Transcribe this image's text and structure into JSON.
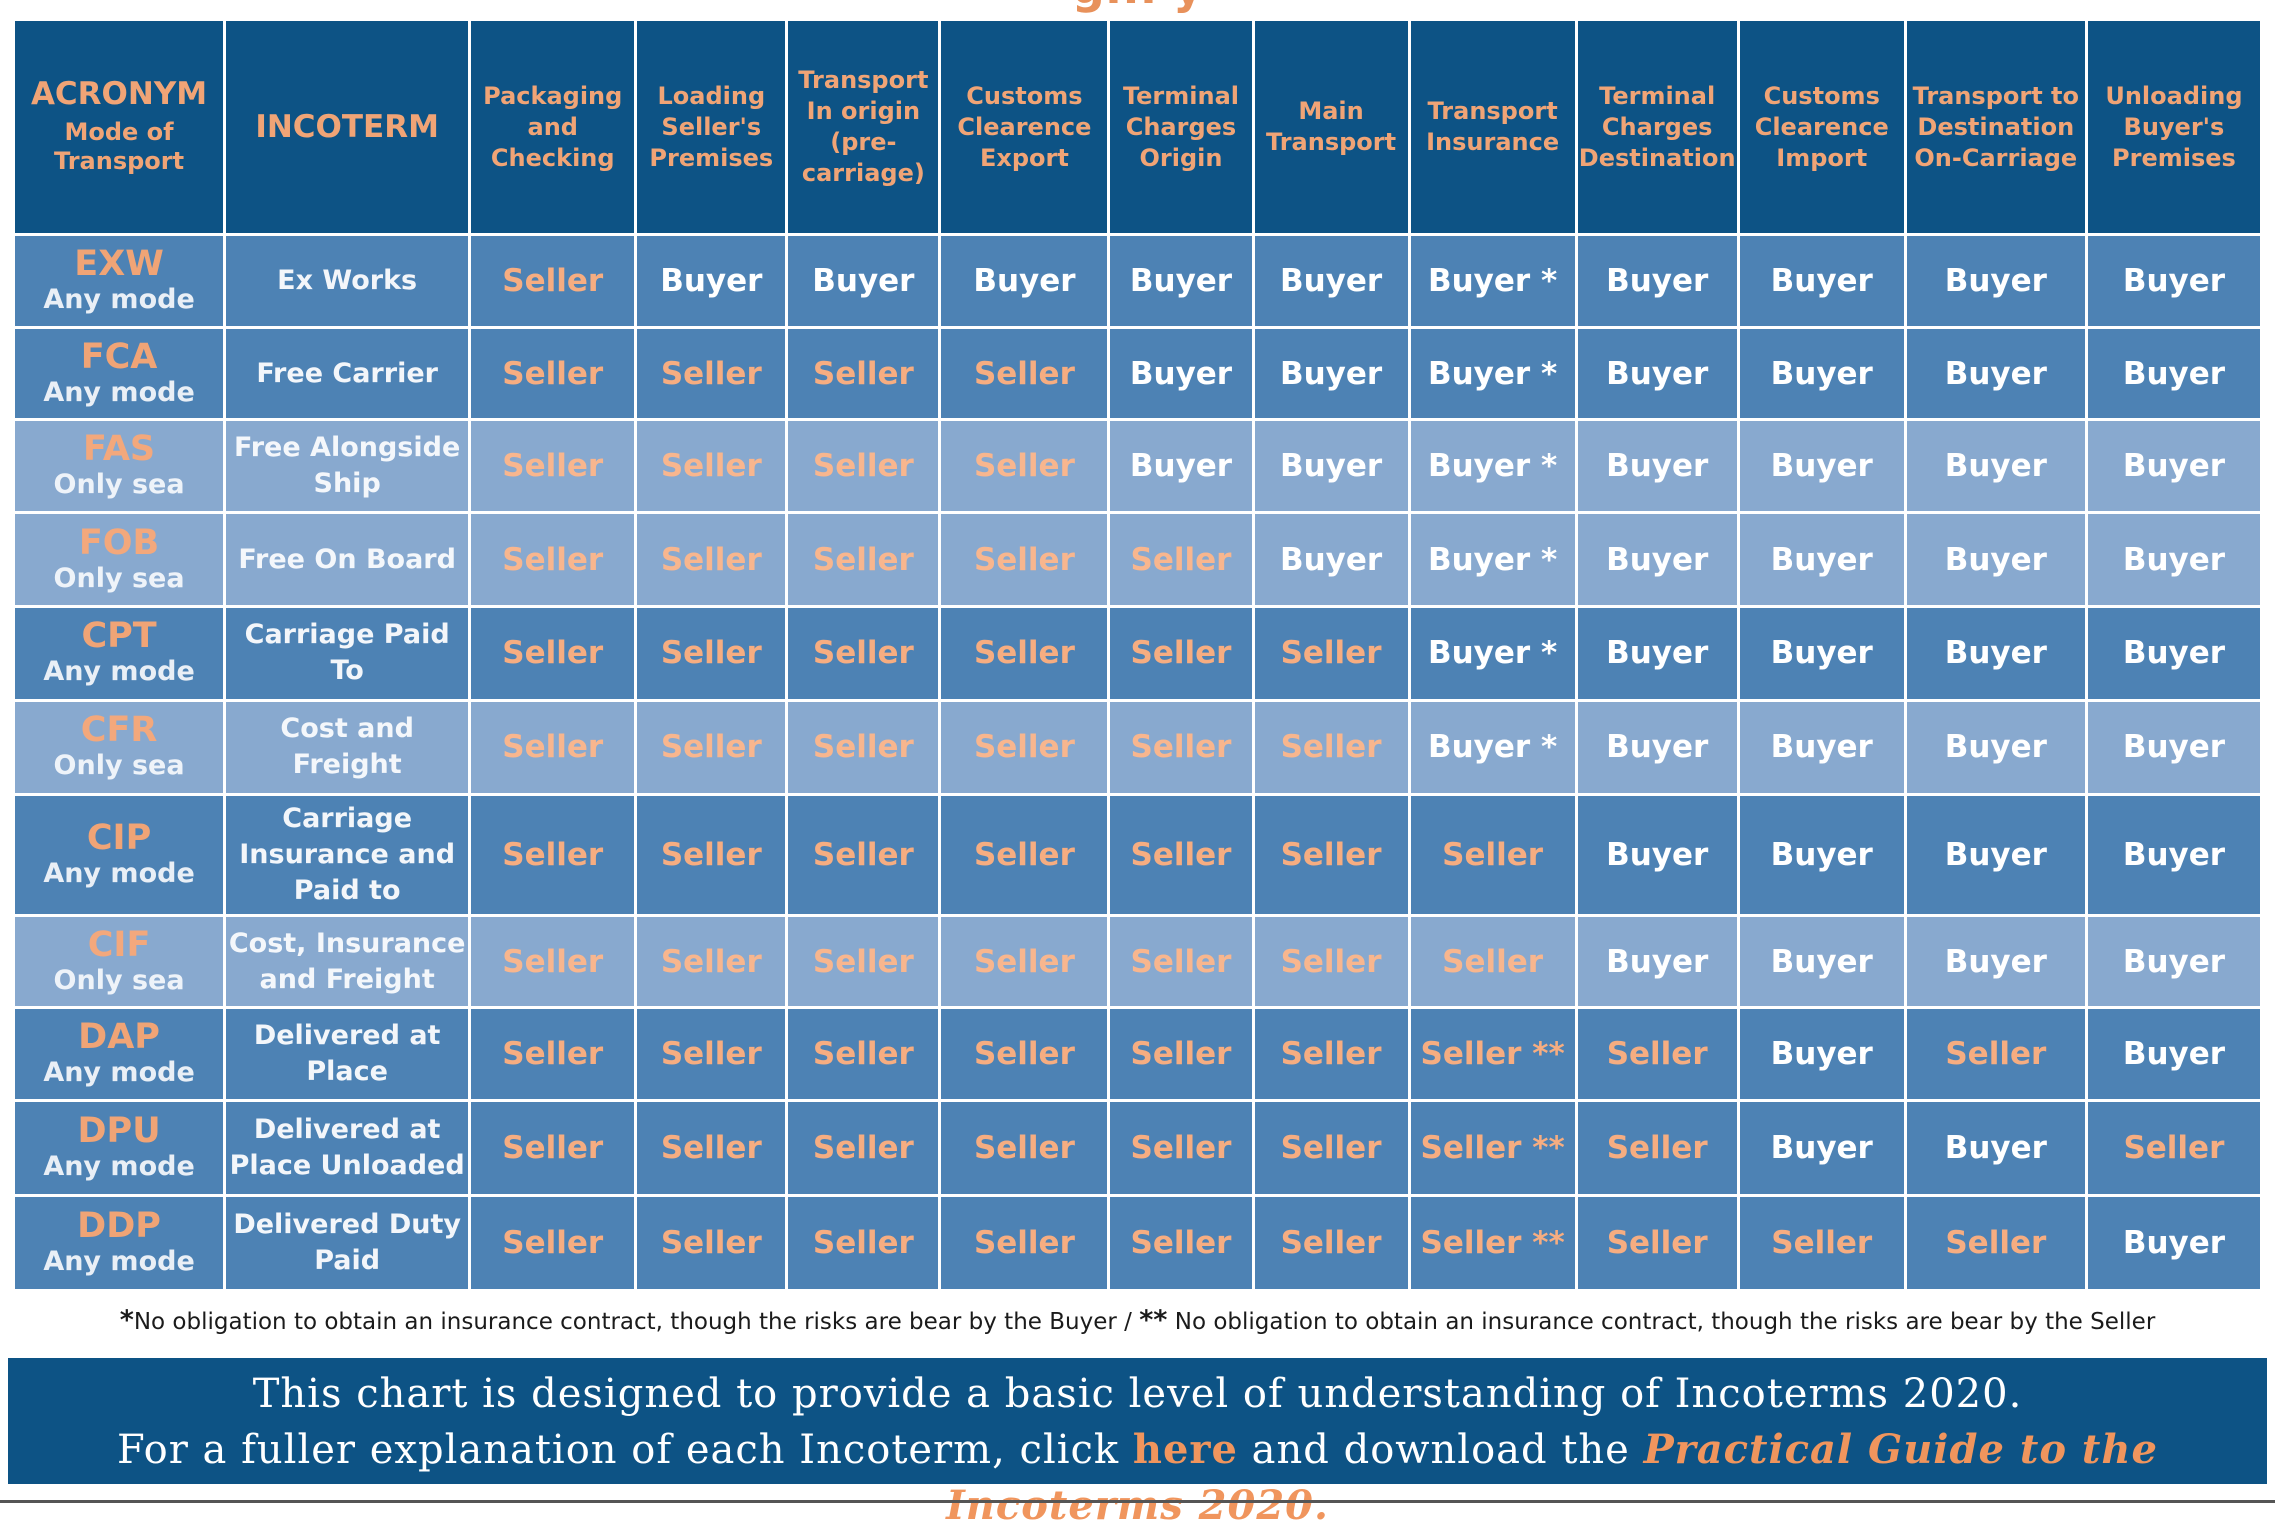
{
  "page": {
    "title_fragment": "g... y"
  },
  "headers": {
    "acronym": "ACRONYM",
    "mode_of_transport": "Mode of Transport",
    "incoterm": "INCOTERM",
    "columns": [
      "Packaging and Checking",
      "Loading Seller's Premises",
      "Transport In origin (pre-carriage)",
      "Customs Clearence Export",
      "Terminal Charges Origin",
      "Main Transport",
      "Transport Insurance",
      "Terminal Charges Destination",
      "Customs Clearence Import",
      "Transport to Destination On-Carriage",
      "Unloading Buyer's Premises"
    ]
  },
  "rows": [
    {
      "code": "EXW",
      "mode": "Any mode",
      "term": "Ex Works",
      "shade": "dk",
      "values": [
        "Seller",
        "Buyer",
        "Buyer",
        "Buyer",
        "Buyer",
        "Buyer",
        "Buyer *",
        "Buyer",
        "Buyer",
        "Buyer",
        "Buyer"
      ]
    },
    {
      "code": "FCA",
      "mode": "Any mode",
      "term": "Free Carrier",
      "shade": "dk",
      "values": [
        "Seller",
        "Seller",
        "Seller",
        "Seller",
        "Buyer",
        "Buyer",
        "Buyer *",
        "Buyer",
        "Buyer",
        "Buyer",
        "Buyer"
      ]
    },
    {
      "code": "FAS",
      "mode": "Only sea",
      "term": "Free Alongside Ship",
      "shade": "lt",
      "values": [
        "Seller",
        "Seller",
        "Seller",
        "Seller",
        "Buyer",
        "Buyer",
        "Buyer *",
        "Buyer",
        "Buyer",
        "Buyer",
        "Buyer"
      ]
    },
    {
      "code": "FOB",
      "mode": "Only sea",
      "term": "Free On Board",
      "shade": "lt",
      "values": [
        "Seller",
        "Seller",
        "Seller",
        "Seller",
        "Seller",
        "Buyer",
        "Buyer *",
        "Buyer",
        "Buyer",
        "Buyer",
        "Buyer"
      ]
    },
    {
      "code": "CPT",
      "mode": "Any mode",
      "term": "Carriage Paid To",
      "shade": "dk",
      "values": [
        "Seller",
        "Seller",
        "Seller",
        "Seller",
        "Seller",
        "Seller",
        "Buyer *",
        "Buyer",
        "Buyer",
        "Buyer",
        "Buyer"
      ]
    },
    {
      "code": "CFR",
      "mode": "Only sea",
      "term": "Cost and Freight",
      "shade": "lt",
      "values": [
        "Seller",
        "Seller",
        "Seller",
        "Seller",
        "Seller",
        "Seller",
        "Buyer *",
        "Buyer",
        "Buyer",
        "Buyer",
        "Buyer"
      ]
    },
    {
      "code": "CIP",
      "mode": "Any mode",
      "term": "Carriage Insurance and Paid to",
      "shade": "dk",
      "values": [
        "Seller",
        "Seller",
        "Seller",
        "Seller",
        "Seller",
        "Seller",
        "Seller",
        "Buyer",
        "Buyer",
        "Buyer",
        "Buyer"
      ]
    },
    {
      "code": "CIF",
      "mode": "Only sea",
      "term": "Cost, Insurance and Freight",
      "shade": "lt",
      "values": [
        "Seller",
        "Seller",
        "Seller",
        "Seller",
        "Seller",
        "Seller",
        "Seller",
        "Buyer",
        "Buyer",
        "Buyer",
        "Buyer"
      ]
    },
    {
      "code": "DAP",
      "mode": "Any mode",
      "term": "Delivered at Place",
      "shade": "dk",
      "values": [
        "Seller",
        "Seller",
        "Seller",
        "Seller",
        "Seller",
        "Seller",
        "Seller **",
        "Seller",
        "Buyer",
        "Seller",
        "Buyer"
      ]
    },
    {
      "code": "DPU",
      "mode": "Any mode",
      "term": "Delivered at Place Unloaded",
      "shade": "dk",
      "values": [
        "Seller",
        "Seller",
        "Seller",
        "Seller",
        "Seller",
        "Seller",
        "Seller **",
        "Seller",
        "Buyer",
        "Buyer",
        "Seller"
      ]
    },
    {
      "code": "DDP",
      "mode": "Any mode",
      "term": "Delivered Duty Paid",
      "shade": "dk",
      "values": [
        "Seller",
        "Seller",
        "Seller",
        "Seller",
        "Seller",
        "Seller",
        "Seller **",
        "Seller",
        "Seller",
        "Seller",
        "Buyer"
      ]
    }
  ],
  "footnote": {
    "star1": "*",
    "text1": "No obligation to obtain an insurance contract, though the risks are bear by the Buyer /",
    "star2": "**",
    "text2": "No obligation to obtain an insurance contract, though the risks are bear by the Seller"
  },
  "banner": {
    "line1": "This chart is designed to provide a basic level of understanding of Incoterms 2020.",
    "line2_before": "For a fuller explanation of each Incoterm, click",
    "here_link": "here",
    "line2_middle": "and download the",
    "guide_link": "Practical Guide to the Incoterms 2020."
  },
  "colors": {
    "header_bg": "#0d5385",
    "header_text": "#f0a476",
    "row_dark": "#4d82b4",
    "row_light": "#88a9cf",
    "buyer_text": "#ffffff",
    "seller_text": "#f6ad81",
    "link_accent": "#f0955d"
  }
}
